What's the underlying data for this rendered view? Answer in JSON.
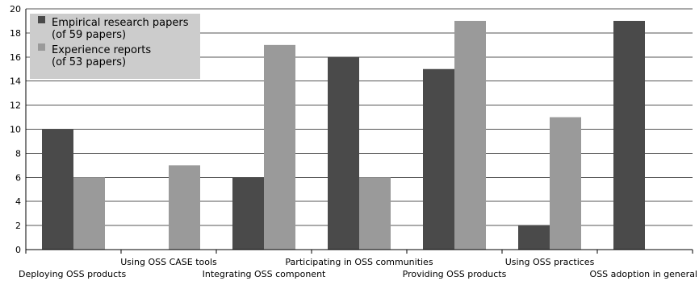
{
  "chart_data": {
    "type": "bar",
    "categories": [
      "Deploying OSS products",
      "Using OSS CASE tools",
      "Integrating OSS component",
      "Participating in OSS communities",
      "Providing OSS products",
      "Using OSS practices",
      "OSS adoption in general"
    ],
    "series": [
      {
        "name_lines": [
          "Empirical research papers",
          "(of 59 papers)"
        ],
        "color": "#4a4a4a",
        "values": [
          10,
          0,
          6,
          16,
          15,
          2,
          19
        ]
      },
      {
        "name_lines": [
          "Experience reports",
          "(of 53 papers)"
        ],
        "color": "#9a9a9a",
        "values": [
          6,
          7,
          17,
          6,
          19,
          11,
          0
        ]
      }
    ],
    "ylim": [
      0,
      20
    ],
    "yticks": [
      0,
      2,
      4,
      6,
      8,
      10,
      12,
      14,
      16,
      18,
      20
    ],
    "grid": true,
    "legend_position": "top-left",
    "legend_background": "#cccccc",
    "gridline_color": "#555555"
  }
}
